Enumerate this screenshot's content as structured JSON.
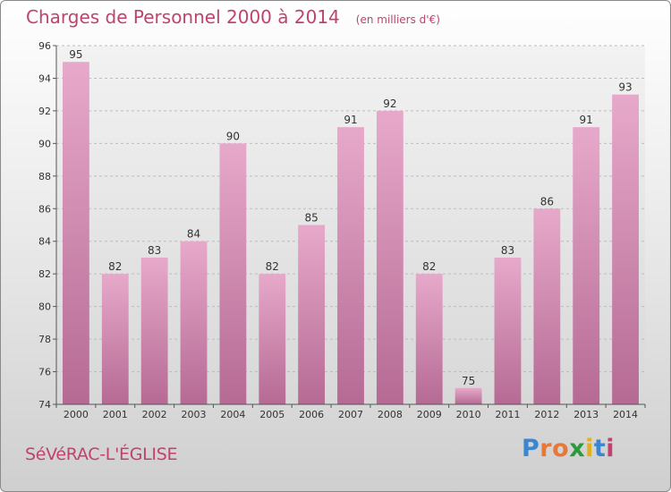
{
  "header": {
    "title": "Charges de Personnel 2000 à 2014",
    "subtitle": "(en milliers d'€)"
  },
  "footer": {
    "town": "SéVéRAC-L'ÉGLISE",
    "logo": "Proxiti"
  },
  "chart_data": {
    "type": "bar",
    "title": "Charges de Personnel 2000 à 2014",
    "subtitle": "(en milliers d'€)",
    "xlabel": "",
    "ylabel": "",
    "categories": [
      "2000",
      "2001",
      "2002",
      "2003",
      "2004",
      "2005",
      "2006",
      "2007",
      "2008",
      "2009",
      "2010",
      "2011",
      "2012",
      "2013",
      "2014"
    ],
    "values": [
      95,
      82,
      83,
      84,
      90,
      82,
      85,
      91,
      92,
      82,
      75,
      83,
      86,
      91,
      93
    ],
    "ylim": [
      74,
      96
    ],
    "yticks": [
      74,
      76,
      78,
      80,
      82,
      84,
      86,
      88,
      90,
      92,
      94,
      96
    ],
    "grid": true,
    "bar_color": "#d88ab0",
    "legend": "none"
  }
}
